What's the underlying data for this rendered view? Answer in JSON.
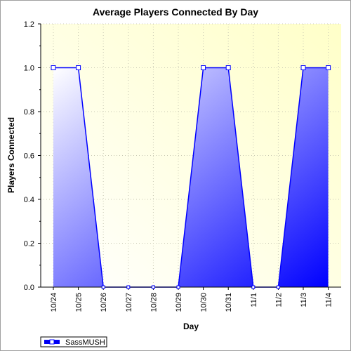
{
  "chart_data": {
    "type": "area",
    "title": "Average Players Connected By Day",
    "xlabel": "Day",
    "ylabel": "Players Connected",
    "categories": [
      "10/24",
      "10/25",
      "10/26",
      "10/27",
      "10/28",
      "10/29",
      "10/30",
      "10/31",
      "11/1",
      "11/2",
      "11/3",
      "11/4"
    ],
    "series": [
      {
        "name": "SassMUSH",
        "values": [
          1.0,
          1.0,
          0.0,
          0.0,
          0.0,
          0.0,
          1.0,
          1.0,
          0.0,
          0.0,
          1.0,
          1.0
        ]
      }
    ],
    "ylim": [
      0,
      1.2
    ],
    "yticks": [
      "0.0",
      "0.2",
      "0.4",
      "0.6",
      "0.8",
      "1.0",
      "1.2"
    ],
    "grid": true,
    "legend_position": "bottom-left",
    "colors": {
      "line": "#0000ff",
      "fill_light": "#ffffff",
      "fill_dark": "#0000ff",
      "plot_bg_top": "#ffffc8",
      "plot_bg_bottom": "#ffffff"
    }
  }
}
